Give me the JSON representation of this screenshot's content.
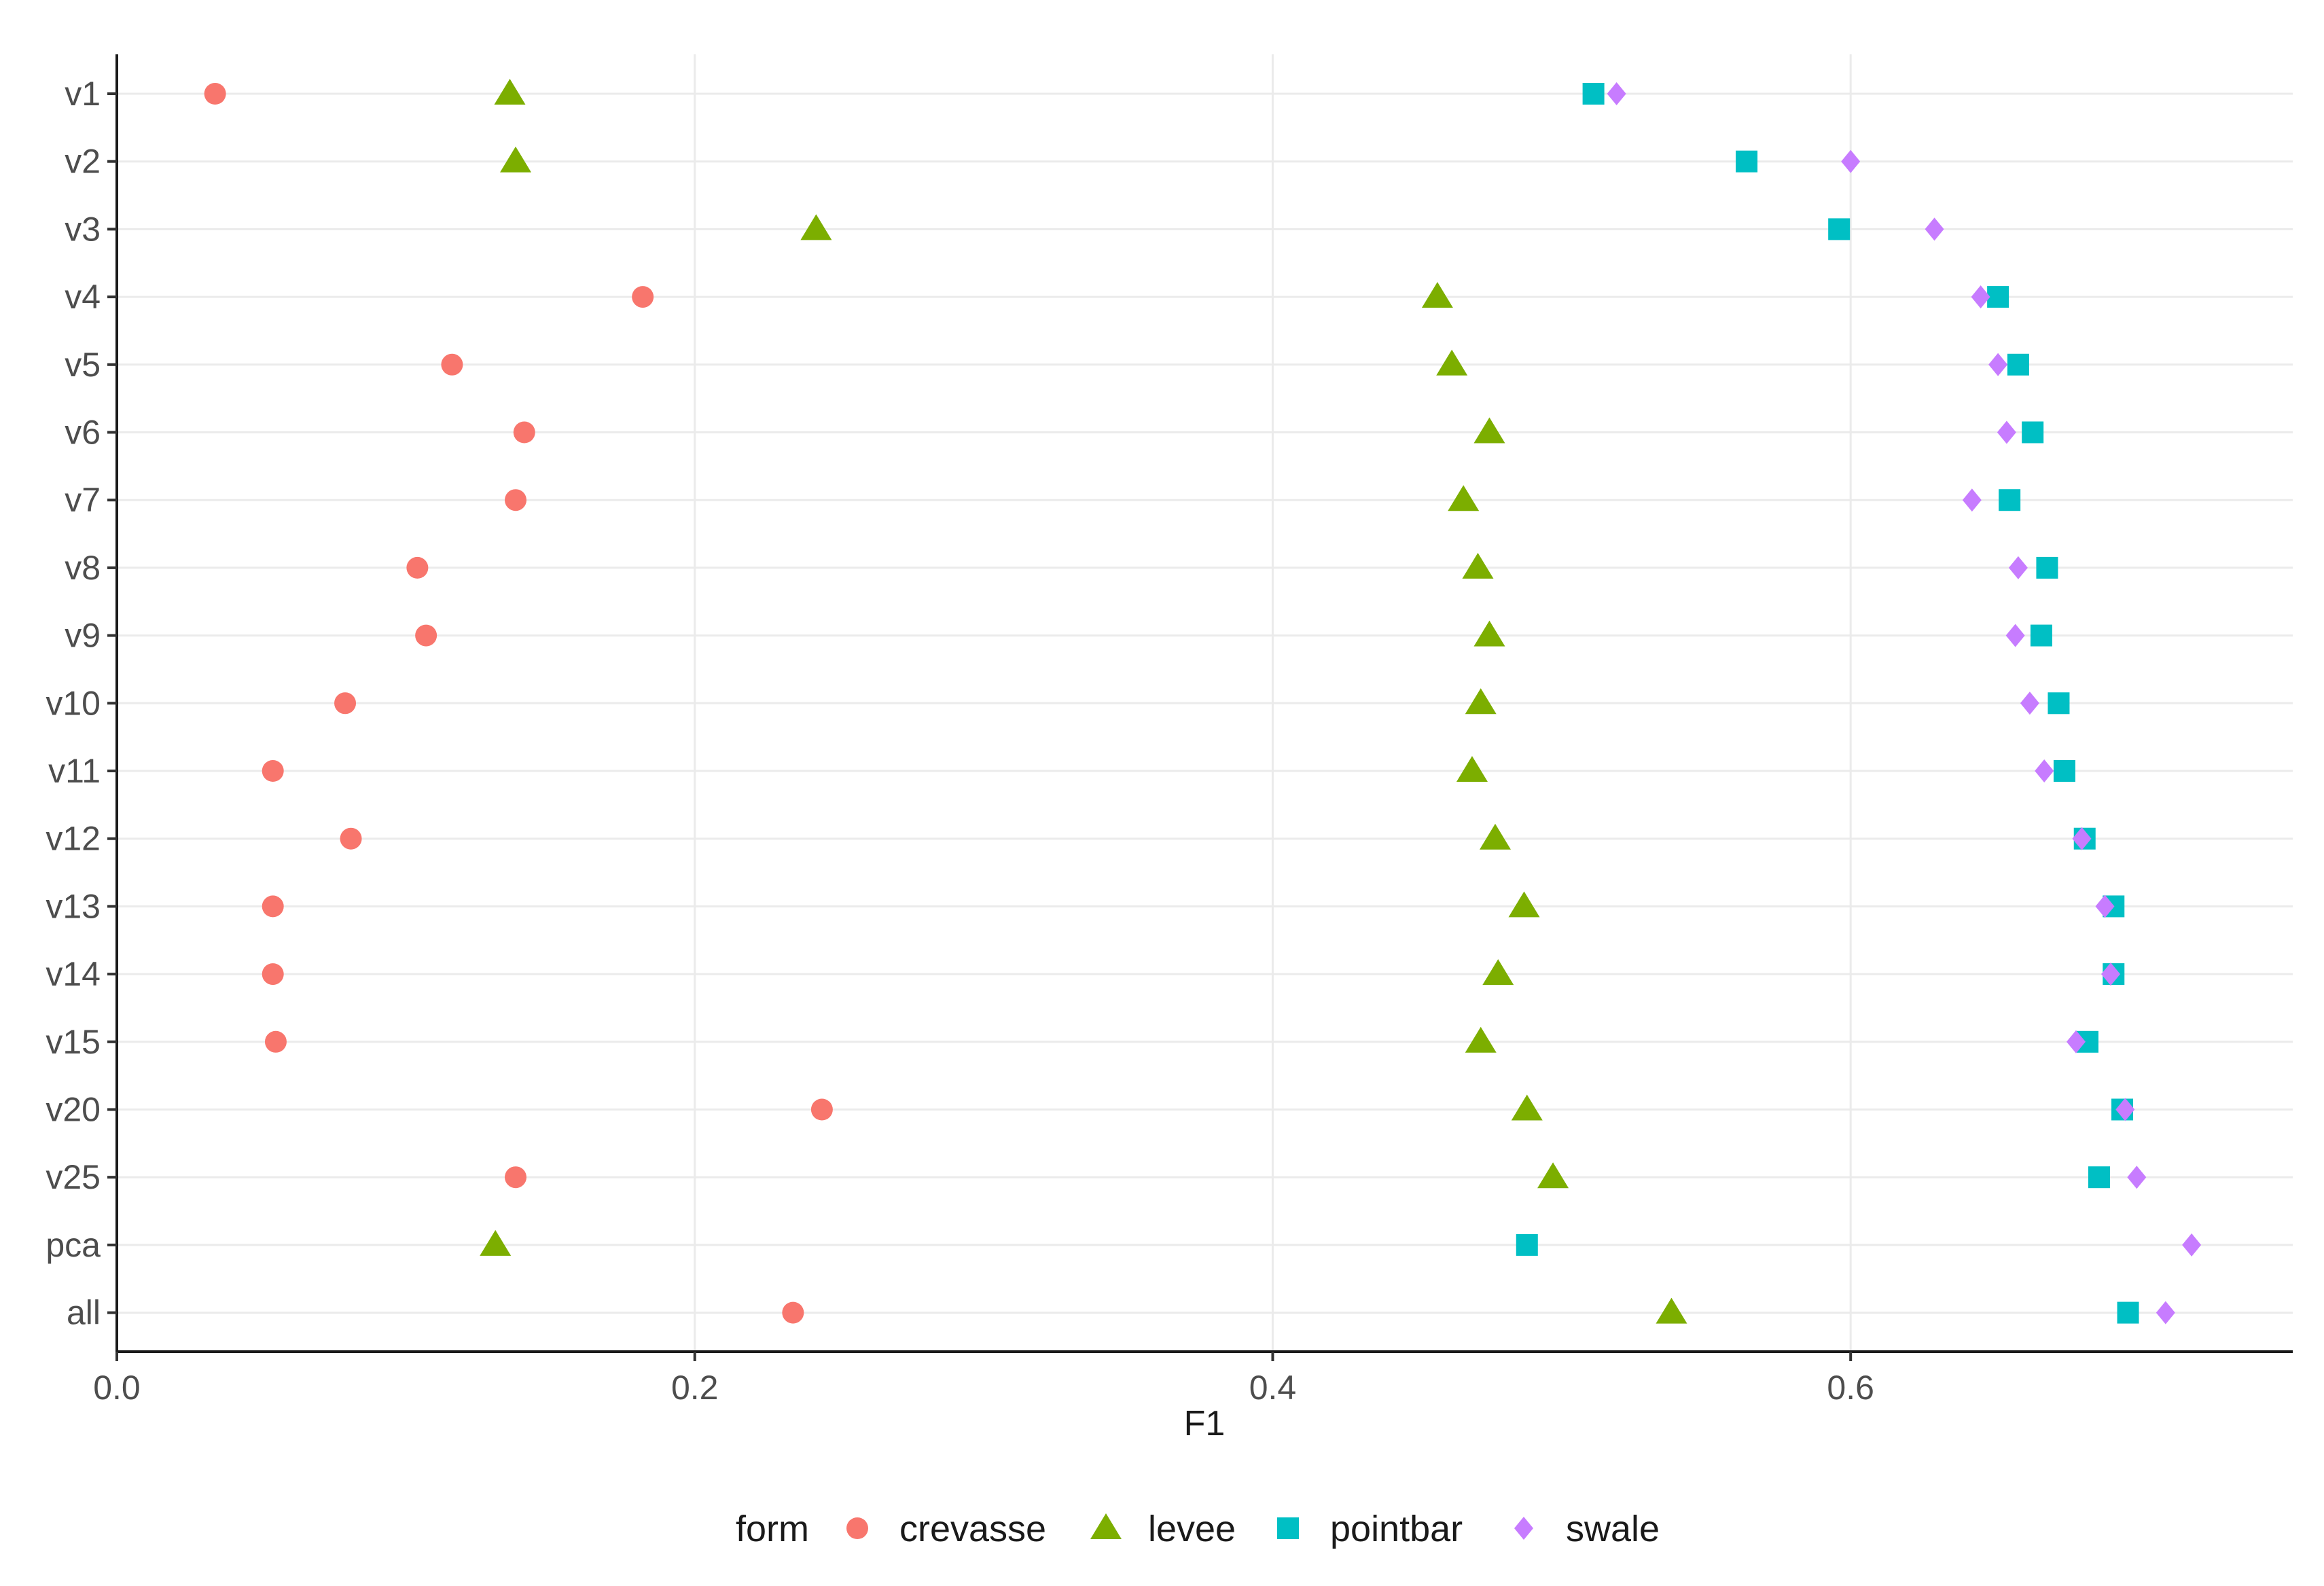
{
  "chart_data": {
    "type": "scatter",
    "title": "",
    "xlabel": "F1",
    "ylabel": "",
    "xlim": [
      0.0,
      0.753
    ],
    "x_ticks": [
      0.0,
      0.2,
      0.4,
      0.6
    ],
    "x_tick_labels": [
      "0.0",
      "0.2",
      "0.4",
      "0.6"
    ],
    "categories": [
      "v1",
      "v2",
      "v3",
      "v4",
      "v5",
      "v6",
      "v7",
      "v8",
      "v9",
      "v10",
      "v11",
      "v12",
      "v13",
      "v14",
      "v15",
      "v20",
      "v25",
      "pca",
      "all"
    ],
    "grid": true,
    "legend": {
      "title": "form",
      "position": "bottom"
    },
    "series": [
      {
        "name": "crevasse",
        "marker": "circle",
        "color": "#F8766D",
        "values": [
          0.034,
          null,
          null,
          0.182,
          0.116,
          0.141,
          0.138,
          0.104,
          0.107,
          0.079,
          0.054,
          0.081,
          0.054,
          0.054,
          0.055,
          0.244,
          0.138,
          null,
          0.234
        ]
      },
      {
        "name": "levee",
        "marker": "triangle",
        "color": "#7CAE00",
        "values": [
          0.136,
          0.138,
          0.242,
          0.457,
          0.462,
          0.475,
          0.466,
          0.471,
          0.475,
          0.472,
          0.469,
          0.477,
          0.487,
          0.478,
          0.472,
          0.488,
          0.497,
          0.131,
          0.538
        ]
      },
      {
        "name": "pointbar",
        "marker": "square",
        "color": "#00BFC4",
        "values": [
          0.511,
          0.564,
          0.596,
          0.651,
          0.658,
          0.663,
          0.655,
          0.668,
          0.666,
          0.672,
          0.674,
          0.681,
          0.691,
          0.691,
          0.682,
          0.694,
          0.686,
          0.488,
          0.696
        ]
      },
      {
        "name": "swale",
        "marker": "diamond",
        "color": "#C77CFF",
        "values": [
          0.519,
          0.6,
          0.629,
          0.645,
          0.651,
          0.654,
          0.642,
          0.658,
          0.657,
          0.662,
          0.667,
          0.68,
          0.688,
          0.69,
          0.678,
          0.695,
          0.699,
          0.718,
          0.709
        ]
      }
    ]
  }
}
